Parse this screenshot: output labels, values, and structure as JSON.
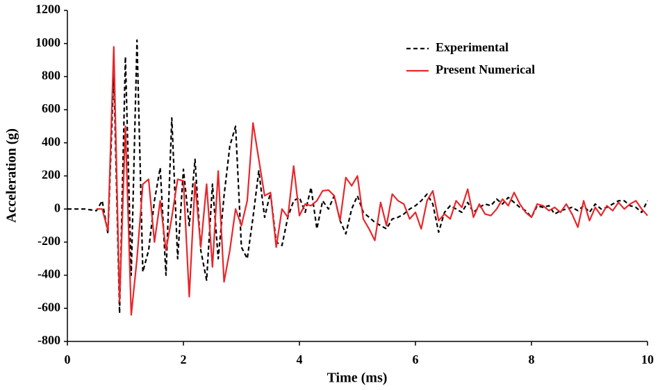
{
  "chart_data": {
    "type": "line",
    "xlabel": "Time (ms)",
    "ylabel": "Acceleration (g)",
    "x": [
      0,
      0.1,
      0.2,
      0.3,
      0.4,
      0.5,
      0.6,
      0.7,
      0.8,
      0.9,
      1,
      1.1,
      1.2,
      1.3,
      1.4,
      1.5,
      1.6,
      1.7,
      1.8,
      1.9,
      2,
      2.1,
      2.2,
      2.3,
      2.4,
      2.5,
      2.6,
      2.7,
      2.8,
      2.9,
      3,
      3.1,
      3.2,
      3.3,
      3.4,
      3.5,
      3.6,
      3.7,
      3.8,
      3.9,
      4,
      4.1,
      4.2,
      4.3,
      4.4,
      4.5,
      4.6,
      4.7,
      4.8,
      4.9,
      5,
      5.1,
      5.2,
      5.3,
      5.4,
      5.5,
      5.6,
      5.7,
      5.8,
      5.9,
      6,
      6.1,
      6.2,
      6.3,
      6.4,
      6.5,
      6.6,
      6.7,
      6.8,
      6.9,
      7,
      7.1,
      7.2,
      7.3,
      7.4,
      7.5,
      7.6,
      7.7,
      7.8,
      7.9,
      8,
      8.1,
      8.2,
      8.3,
      8.4,
      8.5,
      8.6,
      8.7,
      8.8,
      8.9,
      9,
      9.1,
      9.2,
      9.3,
      9.4,
      9.5,
      9.6,
      9.7,
      9.8,
      9.9,
      10
    ],
    "series": [
      {
        "name": "Experimental",
        "color": "#000000",
        "dash": true,
        "values": [
          0,
          0,
          0,
          0,
          -5,
          -10,
          50,
          -150,
          830,
          -630,
          920,
          -400,
          1020,
          -380,
          -250,
          50,
          250,
          -400,
          550,
          -300,
          240,
          -100,
          300,
          -250,
          -430,
          150,
          -300,
          80,
          380,
          500,
          -230,
          -300,
          -50,
          230,
          -50,
          100,
          -200,
          -220,
          -50,
          50,
          70,
          -20,
          130,
          -120,
          50,
          0,
          80,
          -70,
          -150,
          0,
          80,
          -20,
          -50,
          -80,
          -100,
          -120,
          -60,
          -50,
          -30,
          0,
          20,
          50,
          90,
          30,
          -140,
          -20,
          20,
          0,
          -20,
          40,
          -20,
          10,
          30,
          20,
          60,
          30,
          70,
          40,
          10,
          -10,
          -50,
          20,
          10,
          20,
          -30,
          -10,
          0,
          10,
          -10,
          20,
          -20,
          30,
          0,
          10,
          30,
          50,
          50,
          20,
          10,
          -20,
          50
        ]
      },
      {
        "name": "Present Numerical",
        "color": "#e8262a",
        "dash": false,
        "values": [
          null,
          null,
          null,
          null,
          null,
          0,
          0,
          -130,
          980,
          -560,
          500,
          -640,
          -300,
          150,
          180,
          -200,
          50,
          -250,
          -50,
          180,
          170,
          -530,
          160,
          -230,
          150,
          -350,
          230,
          -440,
          -250,
          0,
          -100,
          50,
          520,
          300,
          80,
          100,
          -230,
          0,
          -50,
          260,
          -40,
          30,
          20,
          50,
          110,
          115,
          80,
          -70,
          190,
          140,
          200,
          -60,
          -120,
          -190,
          40,
          -100,
          90,
          50,
          30,
          -60,
          -20,
          -120,
          50,
          110,
          -70,
          -30,
          -60,
          50,
          10,
          120,
          -50,
          30,
          -30,
          -40,
          0,
          60,
          20,
          100,
          30,
          -20,
          -50,
          30,
          20,
          -10,
          10,
          -20,
          30,
          -30,
          -110,
          50,
          -70,
          10,
          -40,
          20,
          -10,
          40,
          0,
          30,
          50,
          0,
          -40
        ]
      }
    ],
    "xlim": [
      0,
      10
    ],
    "xticks": [
      0,
      2,
      4,
      6,
      8,
      10
    ],
    "ylim": [
      -800,
      1200
    ],
    "yticks": [
      -800,
      -600,
      -400,
      -200,
      0,
      200,
      400,
      600,
      800,
      1000,
      1200
    ],
    "grid": false,
    "legend": "upper right"
  }
}
